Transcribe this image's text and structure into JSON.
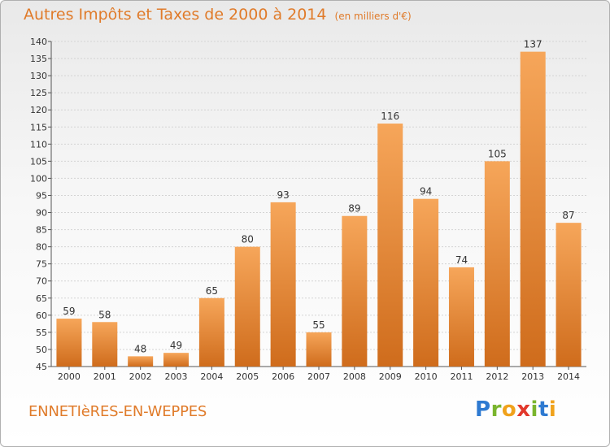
{
  "header": {
    "title": "Autres Impôts et Taxes de 2000 à 2014",
    "subtitle": "(en milliers d'€)"
  },
  "footer": {
    "commune": "ENNETIèRES-EN-WEPPES",
    "brand_letters": [
      {
        "ch": "P",
        "color": "#2e7ad1"
      },
      {
        "ch": "r",
        "color": "#7ab52e"
      },
      {
        "ch": "o",
        "color": "#f0a21c"
      },
      {
        "ch": "x",
        "color": "#e2382c"
      },
      {
        "ch": "i",
        "color": "#7ab52e"
      },
      {
        "ch": "t",
        "color": "#2e7ad1"
      },
      {
        "ch": "i",
        "color": "#f0a21c"
      }
    ]
  },
  "colors": {
    "bar_top": "#f6a65a",
    "bar_bottom": "#cf6c1c",
    "title": "#e07b2a"
  },
  "chart_data": {
    "type": "bar",
    "title": "Autres Impôts et Taxes de 2000 à 2014",
    "subtitle": "(en milliers d'€)",
    "categories": [
      "2000",
      "2001",
      "2002",
      "2003",
      "2004",
      "2005",
      "2006",
      "2007",
      "2008",
      "2009",
      "2010",
      "2011",
      "2012",
      "2013",
      "2014"
    ],
    "values": [
      59,
      58,
      48,
      49,
      65,
      80,
      93,
      55,
      89,
      116,
      94,
      74,
      105,
      137,
      87
    ],
    "ylim": [
      45,
      140
    ],
    "yticks": [
      45,
      50,
      55,
      60,
      65,
      70,
      75,
      80,
      85,
      90,
      95,
      100,
      105,
      110,
      115,
      120,
      125,
      130,
      135,
      140
    ],
    "grid": true
  }
}
